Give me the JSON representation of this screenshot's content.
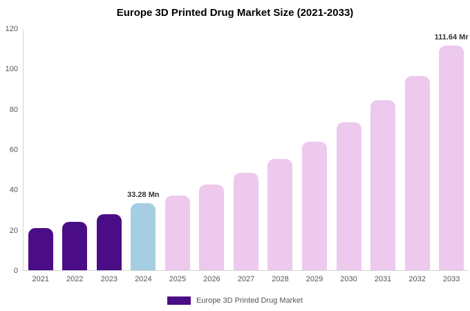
{
  "chart_data": {
    "type": "bar",
    "title": "Europe 3D Printed Drug Market Size (2021-2033)",
    "categories": [
      "2021",
      "2022",
      "2023",
      "2024",
      "2025",
      "2026",
      "2027",
      "2028",
      "2029",
      "2030",
      "2031",
      "2032",
      "2033"
    ],
    "values": [
      21,
      24,
      28,
      33.28,
      37,
      42.5,
      48.5,
      55.5,
      64,
      73.5,
      84.5,
      96.5,
      111.64
    ],
    "ylim": [
      0,
      120
    ],
    "yticks": [
      0,
      20,
      40,
      60,
      80,
      100,
      120
    ],
    "xlabel": "",
    "ylabel": "",
    "grid": false,
    "bar_colors": [
      "#4b0d85",
      "#4b0d85",
      "#4b0d85",
      "#a5cee3",
      "#edc9ed",
      "#edc9ed",
      "#edc9ed",
      "#edc9ed",
      "#edc9ed",
      "#edc9ed",
      "#edc9ed",
      "#edc9ed",
      "#edc9ed"
    ],
    "annotations": [
      {
        "index": 3,
        "text": "33.28 Mn"
      },
      {
        "index": 12,
        "text": "111.64 Mr"
      }
    ],
    "legend": [
      {
        "label": "Europe 3D Printed Drug Market",
        "color": "#4b0d85"
      }
    ],
    "legend_position": "bottom"
  },
  "colors": {
    "background": "#ffffff",
    "axis": "#d4d4d4",
    "tick_text": "#555555",
    "title_text": "#000000",
    "annotation_text": "#333333"
  }
}
